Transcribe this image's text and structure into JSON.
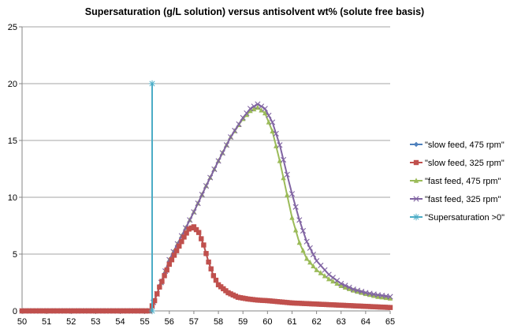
{
  "chart_data": {
    "type": "line",
    "title": "Supersaturation (g/L solution) versus antisolvent wt% (solute free basis)",
    "xlabel": "",
    "ylabel": "",
    "xlim": [
      50,
      65
    ],
    "ylim": [
      0,
      25
    ],
    "x_ticks": [
      "50",
      "51",
      "52",
      "53",
      "54",
      "55",
      "56",
      "57",
      "58",
      "59",
      "60",
      "61",
      "62",
      "63",
      "64",
      "65"
    ],
    "y_ticks": [
      "0",
      "5",
      "10",
      "15",
      "20",
      "25"
    ],
    "grid": "horizontal",
    "legend_position": "right",
    "series": [
      {
        "name": "\"slow feed, 475 rpm\"",
        "color": "#4f81bd",
        "marker": "diamond",
        "points": [
          [
            50,
            0
          ],
          [
            51,
            0
          ],
          [
            52,
            0
          ],
          [
            53,
            0
          ],
          [
            54,
            0
          ],
          [
            55,
            0
          ],
          [
            55.2,
            0
          ],
          [
            55.4,
            0.9
          ],
          [
            55.6,
            2.1
          ],
          [
            55.8,
            3.1
          ],
          [
            56,
            4.1
          ],
          [
            56.2,
            4.9
          ],
          [
            56.4,
            5.7
          ],
          [
            56.6,
            6.5
          ],
          [
            56.8,
            7.2
          ],
          [
            57,
            7.4
          ],
          [
            57.2,
            6.9
          ],
          [
            57.4,
            5.8
          ],
          [
            57.6,
            4.3
          ],
          [
            57.8,
            3.1
          ],
          [
            58,
            2.3
          ],
          [
            58.4,
            1.6
          ],
          [
            58.8,
            1.2
          ],
          [
            59.2,
            1.05
          ],
          [
            59.6,
            0.95
          ],
          [
            60,
            0.9
          ],
          [
            60.5,
            0.8
          ],
          [
            61,
            0.7
          ],
          [
            61.5,
            0.65
          ],
          [
            62,
            0.6
          ],
          [
            62.5,
            0.55
          ],
          [
            63,
            0.5
          ],
          [
            63.5,
            0.45
          ],
          [
            64,
            0.4
          ],
          [
            64.5,
            0.35
          ],
          [
            65,
            0.3
          ]
        ]
      },
      {
        "name": "\"slow feed, 325 rpm\"",
        "color": "#c0504d",
        "marker": "square",
        "points": [
          [
            50,
            0
          ],
          [
            51,
            0
          ],
          [
            52,
            0
          ],
          [
            53,
            0
          ],
          [
            54,
            0
          ],
          [
            55,
            0
          ],
          [
            55.2,
            0
          ],
          [
            55.4,
            0.9
          ],
          [
            55.6,
            2.1
          ],
          [
            55.8,
            3.1
          ],
          [
            56,
            4.1
          ],
          [
            56.2,
            4.9
          ],
          [
            56.4,
            5.7
          ],
          [
            56.6,
            6.5
          ],
          [
            56.8,
            7.2
          ],
          [
            57,
            7.4
          ],
          [
            57.2,
            6.9
          ],
          [
            57.4,
            5.8
          ],
          [
            57.6,
            4.3
          ],
          [
            57.8,
            3.1
          ],
          [
            58,
            2.3
          ],
          [
            58.4,
            1.6
          ],
          [
            58.8,
            1.2
          ],
          [
            59.2,
            1.05
          ],
          [
            59.6,
            0.95
          ],
          [
            60,
            0.9
          ],
          [
            60.5,
            0.8
          ],
          [
            61,
            0.7
          ],
          [
            61.5,
            0.65
          ],
          [
            62,
            0.6
          ],
          [
            62.5,
            0.55
          ],
          [
            63,
            0.5
          ],
          [
            63.5,
            0.45
          ],
          [
            64,
            0.4
          ],
          [
            64.5,
            0.35
          ],
          [
            65,
            0.3
          ]
        ]
      },
      {
        "name": "\"fast feed, 475 rpm\"",
        "color": "#9bbb59",
        "marker": "triangle",
        "points": [
          [
            50,
            0
          ],
          [
            51,
            0
          ],
          [
            52,
            0
          ],
          [
            53,
            0
          ],
          [
            54,
            0
          ],
          [
            55,
            0
          ],
          [
            55.2,
            0
          ],
          [
            55.5,
            1.5
          ],
          [
            56,
            4.5
          ],
          [
            56.5,
            6.6
          ],
          [
            57,
            8.7
          ],
          [
            57.5,
            11.0
          ],
          [
            58,
            13.2
          ],
          [
            58.5,
            15.3
          ],
          [
            59,
            16.9
          ],
          [
            59.3,
            17.6
          ],
          [
            59.6,
            17.9
          ],
          [
            59.9,
            17.4
          ],
          [
            60.2,
            15.8
          ],
          [
            60.5,
            13.2
          ],
          [
            60.8,
            10.2
          ],
          [
            61,
            8.2
          ],
          [
            61.3,
            6.0
          ],
          [
            61.6,
            4.6
          ],
          [
            62,
            3.6
          ],
          [
            62.5,
            2.8
          ],
          [
            63,
            2.2
          ],
          [
            63.5,
            1.8
          ],
          [
            64,
            1.5
          ],
          [
            64.5,
            1.25
          ],
          [
            65,
            1.1
          ]
        ]
      },
      {
        "name": "\"fast feed, 325 rpm\"",
        "color": "#8064a2",
        "marker": "x",
        "points": [
          [
            50,
            0
          ],
          [
            51,
            0
          ],
          [
            52,
            0
          ],
          [
            53,
            0
          ],
          [
            54,
            0
          ],
          [
            55,
            0
          ],
          [
            55.2,
            0
          ],
          [
            55.5,
            1.5
          ],
          [
            56,
            4.5
          ],
          [
            56.5,
            6.6
          ],
          [
            57,
            8.7
          ],
          [
            57.5,
            11.0
          ],
          [
            58,
            13.2
          ],
          [
            58.5,
            15.3
          ],
          [
            59,
            17.0
          ],
          [
            59.3,
            17.8
          ],
          [
            59.6,
            18.2
          ],
          [
            59.9,
            17.8
          ],
          [
            60.2,
            16.6
          ],
          [
            60.5,
            14.6
          ],
          [
            60.8,
            12.0
          ],
          [
            61,
            10.3
          ],
          [
            61.3,
            8.0
          ],
          [
            61.6,
            6.1
          ],
          [
            62,
            4.4
          ],
          [
            62.5,
            3.2
          ],
          [
            63,
            2.4
          ],
          [
            63.5,
            1.9
          ],
          [
            64,
            1.6
          ],
          [
            64.5,
            1.4
          ],
          [
            65,
            1.25
          ]
        ]
      },
      {
        "name": "\"Supersaturation >0\"",
        "color": "#4bacc6",
        "marker": "star",
        "points": [
          [
            55.3,
            0
          ],
          [
            55.3,
            20
          ]
        ]
      }
    ]
  }
}
